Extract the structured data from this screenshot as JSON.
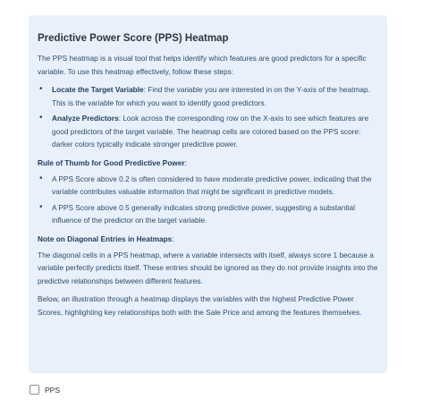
{
  "card": {
    "title": "Predictive Power Score (PPS) Heatmap",
    "intro": "The PPS heatmap is a visual tool that helps identify which features are good predictors for a specific variable. To use this heatmap effectively, follow these steps:",
    "steps": [
      {
        "label": "Locate the Target Variable",
        "text": ": Find the variable you are interested in on the Y-axis of the heatmap. This is the variable for which you want to identify good predictors."
      },
      {
        "label": "Analyze Predictors",
        "text": ": Look across the corresponding row on the X-axis to see which features are good predictors of the target variable. The heatmap cells are colored based on the PPS score: darker colors typically indicate stronger predictive power."
      }
    ],
    "rule_heading_bold": "Rule of Thumb for Good Predictive Power",
    "rule_heading_tail": ":",
    "rules": [
      "A PPS Score above 0.2 is often considered to have moderate predictive power, indicating that the variable contributes valuable information that might be significant in predictive models.",
      "A PPS Score above 0.5 generally indicates strong predictive power, suggesting a substantial influence of the predictor on the target variable."
    ],
    "diag_heading_bold": "Note on Diagonal Entries in Heatmaps",
    "diag_heading_tail": ":",
    "diag_text": "The diagonal cells in a PPS heatmap, where a variable intersects with itself, always score 1 because a variable perfectly predicts itself. These entries should be ignored as they do not provide insights into the predictive relationships between different features.",
    "closing_text": "Below, an illustration through a heatmap displays the variables with the highest Predictive Power Scores, highlighting key relationships both with the Sale Price and among the features themselves."
  },
  "checkbox": {
    "label": "PPS",
    "checked": false
  }
}
